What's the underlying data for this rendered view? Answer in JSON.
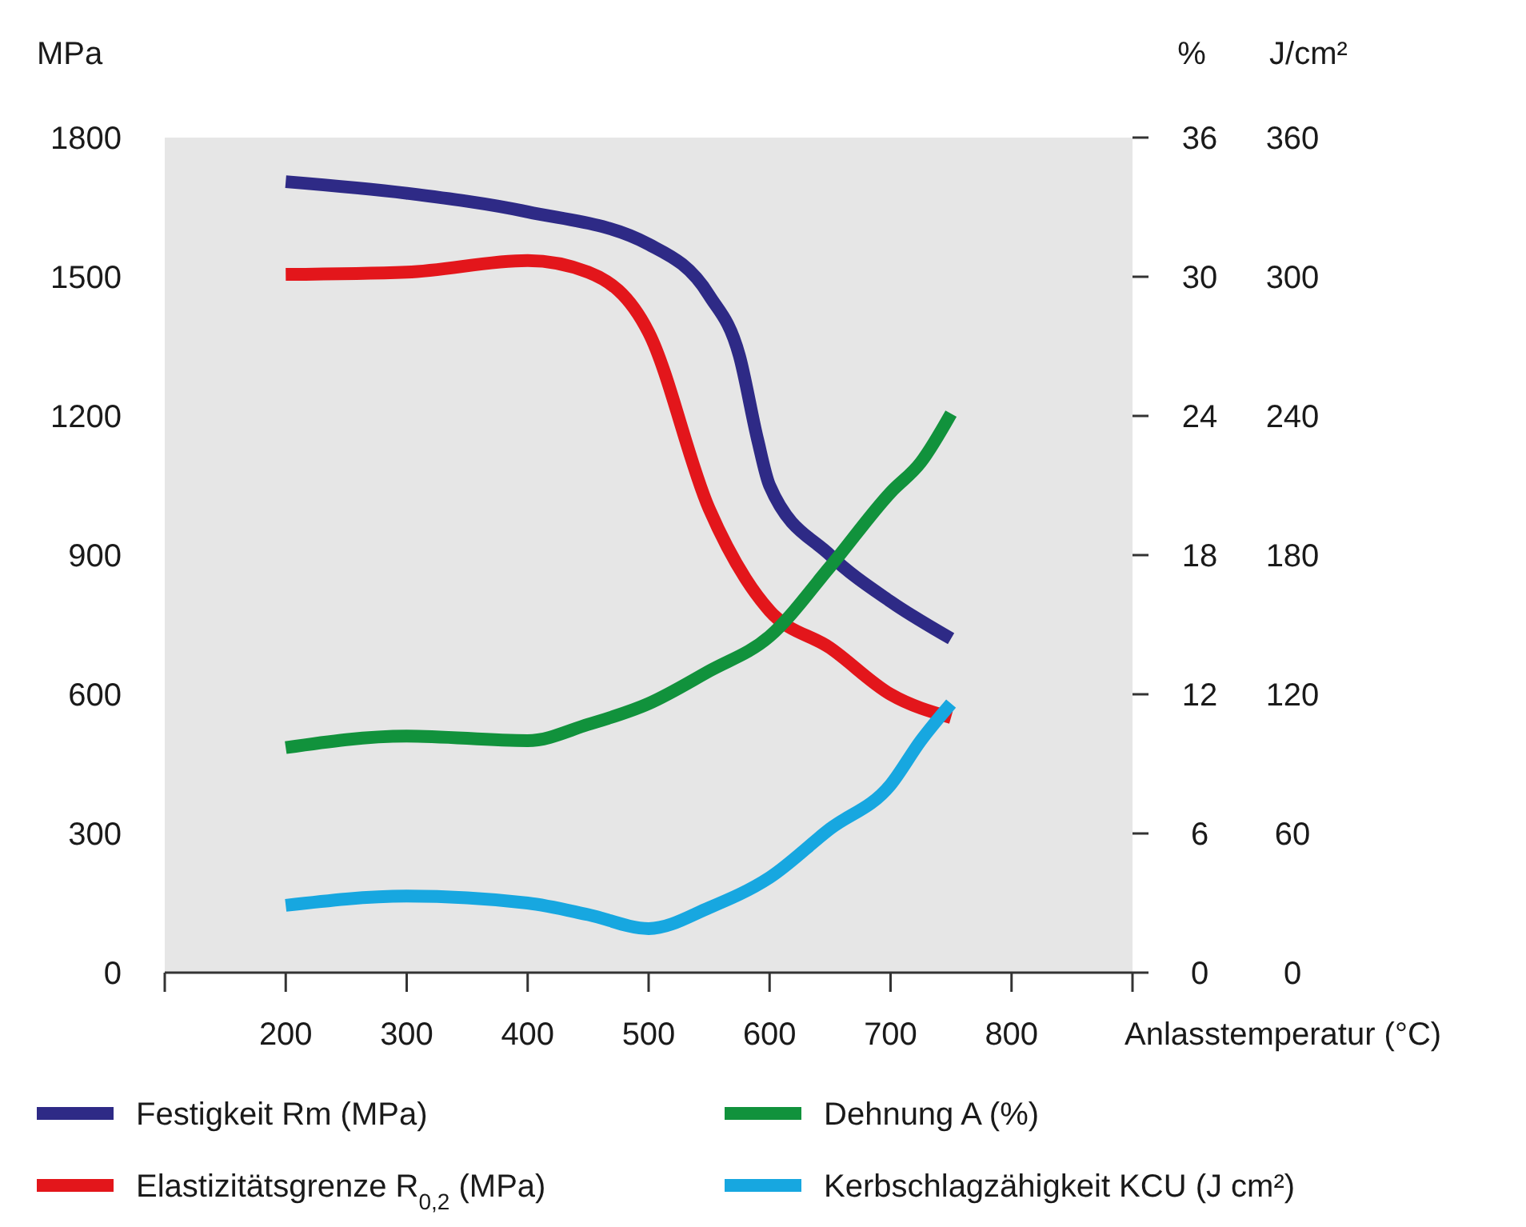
{
  "chart_data": {
    "type": "line",
    "xlabel": "Anlasstemperatur (°C)",
    "ylabel": "MPa",
    "y2label": "%",
    "y3label": "J/cm²",
    "xlim": [
      100,
      900
    ],
    "xticks": [
      {
        "value": 100,
        "label": null
      },
      200,
      300,
      400,
      500,
      600,
      700,
      800,
      {
        "value": 900,
        "label": null
      }
    ],
    "ylim": [
      0,
      1800
    ],
    "yticks": [
      0,
      300,
      600,
      900,
      1200,
      1500,
      1800
    ],
    "y2lim": [
      0,
      36
    ],
    "y2ticks": [
      0,
      6,
      12,
      18,
      24,
      30,
      36
    ],
    "y3lim": [
      0,
      360
    ],
    "y3ticks": [
      0,
      60,
      120,
      180,
      240,
      300,
      360
    ],
    "grid": false,
    "legend": "bottom",
    "line_style": "solid",
    "marker": "none",
    "series": [
      {
        "name": "Festigkeit Rm (MPa)",
        "color": "#2e2a86",
        "x": [
          200,
          300,
          400,
          500,
          550,
          575,
          590,
          600,
          650,
          700,
          750
        ],
        "values": [
          1705,
          1680,
          1640,
          1570,
          1460,
          1330,
          1150,
          1050,
          900,
          800,
          720
        ]
      },
      {
        "name": "Elastizitätsgrenze R$_{0,2}$ (MPa)",
        "color": "#e3161b",
        "x": [
          200,
          300,
          400,
          450,
          500,
          550,
          580,
          600,
          650,
          700,
          750
        ],
        "values": [
          1505,
          1510,
          1535,
          1510,
          1380,
          1000,
          850,
          780,
          700,
          600,
          550
        ]
      },
      {
        "name": "Dehnung A (%)",
        "color": "#11923c",
        "axis": "y2",
        "x": [
          200,
          300,
          400,
          450,
          500,
          550,
          600,
          650,
          700,
          725,
          750
        ],
        "values": [
          9.7,
          10.2,
          10,
          10.7,
          11.6,
          13,
          14.5,
          17.5,
          20.7,
          22,
          24.1
        ]
      },
      {
        "name": "Kerbschlagzähigkeit KCU (J cm²)",
        "color": "#17a7e0",
        "axis": "y3",
        "x": [
          200,
          300,
          400,
          450,
          500,
          550,
          600,
          650,
          700,
          725,
          750
        ],
        "values": [
          29,
          33,
          30,
          25,
          19,
          28,
          41,
          62,
          81,
          100,
          116
        ]
      }
    ]
  }
}
